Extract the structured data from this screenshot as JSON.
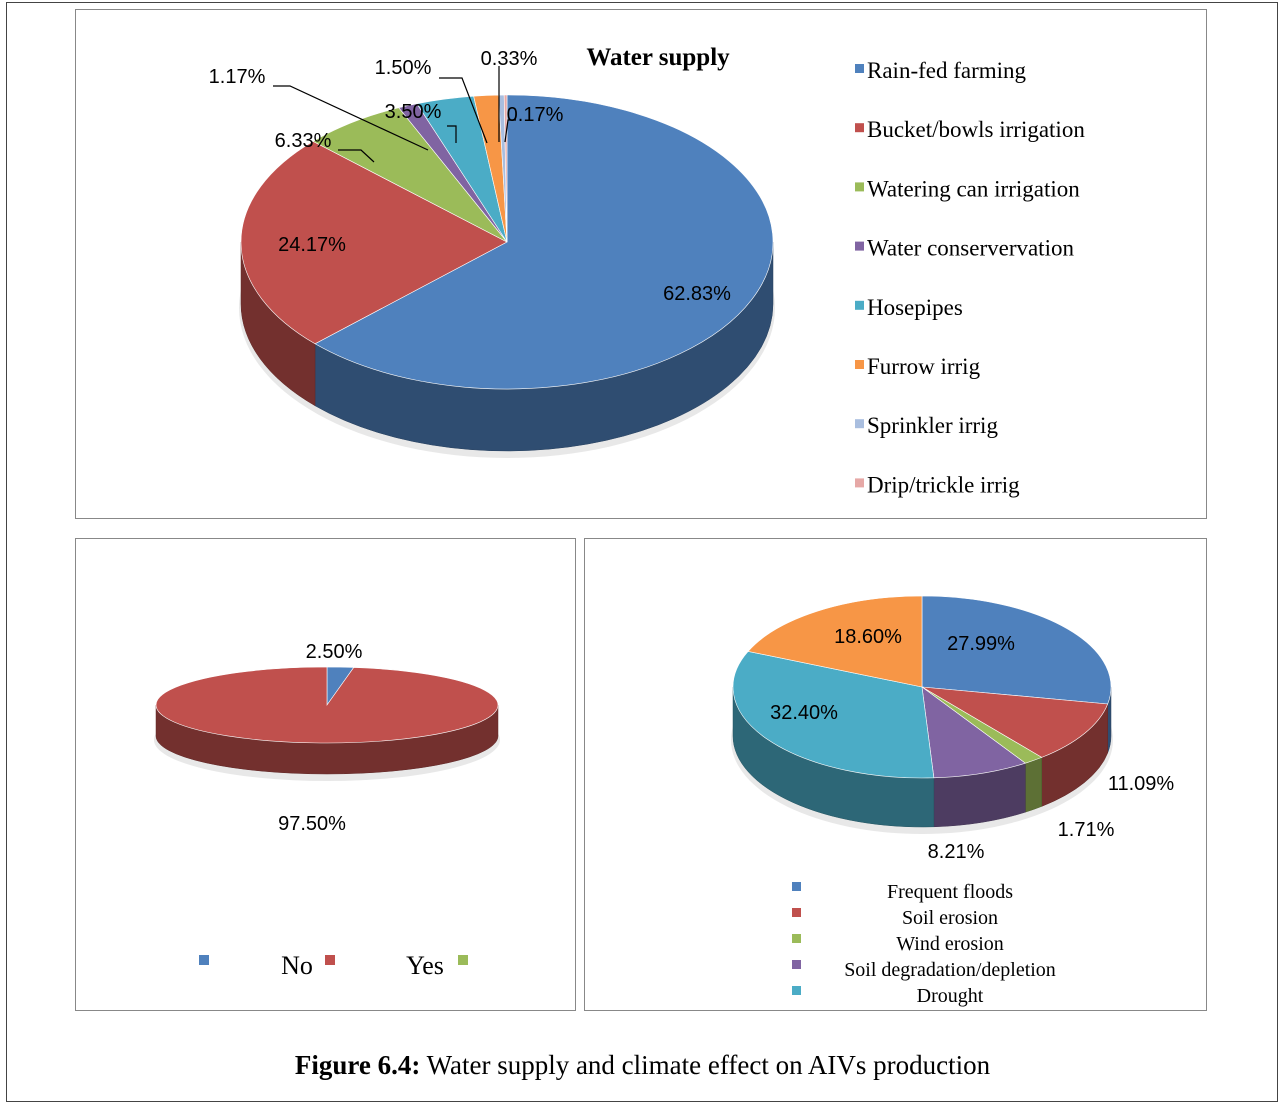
{
  "caption": {
    "label": "Figure 6.4:",
    "text": "Water supply and climate effect on AIVs production"
  },
  "chart_data": [
    {
      "type": "pie",
      "title": "Water supply",
      "legend_position": "right",
      "slices": [
        {
          "name": "Rain-fed farming",
          "value": 62.83,
          "label": "62.83%",
          "color": "#4f81bd"
        },
        {
          "name": "Bucket/bowls irrigation",
          "value": 24.17,
          "label": "24.17%",
          "color": "#c0504d"
        },
        {
          "name": "Watering can irrigation",
          "value": 6.33,
          "label": "6.33%",
          "color": "#9bbb59"
        },
        {
          "name": "Water conservervation",
          "value": 1.17,
          "label": "1.17%",
          "color": "#8064a2"
        },
        {
          "name": "Hosepipes",
          "value": 3.5,
          "label": "3.50%",
          "color": "#4bacc6"
        },
        {
          "name": "Furrow irrig",
          "value": 1.5,
          "label": "1.50%",
          "color": "#f79646"
        },
        {
          "name": "Sprinkler irrig",
          "value": 0.33,
          "label": "0.33%",
          "color": "#a9bedf"
        },
        {
          "name": "Drip/trickle irrig",
          "value": 0.17,
          "label": "0.17%",
          "color": "#e6a8a6"
        }
      ]
    },
    {
      "type": "pie",
      "title": "",
      "legend_position": "bottom",
      "slices": [
        {
          "name": "",
          "value": 2.5,
          "label": "2.50%",
          "color": "#4f81bd"
        },
        {
          "name": "No",
          "value": 97.5,
          "label": "97.50%",
          "color": "#c0504d"
        },
        {
          "name": "Yes",
          "value": 0,
          "label": "",
          "color": "#9bbb59"
        }
      ]
    },
    {
      "type": "pie",
      "title": "",
      "legend_position": "bottom",
      "slices": [
        {
          "name": "Frequent floods",
          "value": 27.99,
          "label": "27.99%",
          "color": "#4f81bd"
        },
        {
          "name": "Soil erosion",
          "value": 11.09,
          "label": "11.09%",
          "color": "#c0504d"
        },
        {
          "name": "Wind erosion",
          "value": 1.71,
          "label": "1.71%",
          "color": "#9bbb59"
        },
        {
          "name": "Soil degradation/depletion",
          "value": 8.21,
          "label": "8.21%",
          "color": "#8064a2"
        },
        {
          "name": "Drought",
          "value": 32.4,
          "label": "32.40%",
          "color": "#4bacc6"
        },
        {
          "name": "",
          "value": 18.6,
          "label": "18.60%",
          "color": "#f79646"
        }
      ]
    }
  ]
}
